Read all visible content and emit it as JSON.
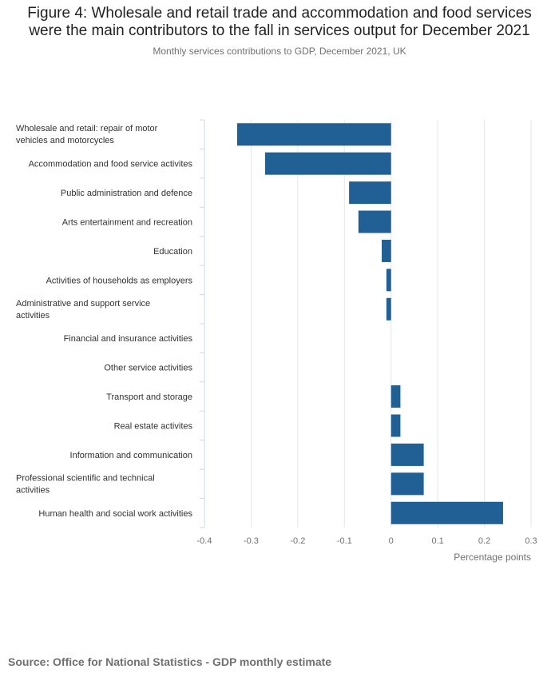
{
  "figure": {
    "title_line1": "Figure 4: Wholesale and retail trade and accommodation and food services",
    "title_line2": "were the main contributors to the fall in services output for December 2021",
    "subtitle": "Monthly services contributions to GDP, December 2021, UK",
    "source": "Source: Office for National Statistics - GDP monthly estimate"
  },
  "chart_data": {
    "type": "bar",
    "orientation": "horizontal",
    "categories": [
      [
        "Wholesale and retail: repair of motor",
        "vehicles and motorcycles"
      ],
      [
        "Accommodation and food service activites"
      ],
      [
        "Public administration and defence"
      ],
      [
        "Arts entertainment and recreation"
      ],
      [
        "Education"
      ],
      [
        "Activities of households as employers"
      ],
      [
        "Administrative and support service",
        "activities"
      ],
      [
        "Financial and insurance activities"
      ],
      [
        "Other service activities"
      ],
      [
        "Transport and storage"
      ],
      [
        "Real estate activites"
      ],
      [
        "Information and communication"
      ],
      [
        "Professional scientific and technical",
        "activities"
      ],
      [
        "Human health and social work activities"
      ]
    ],
    "values": [
      -0.33,
      -0.27,
      -0.09,
      -0.07,
      -0.02,
      -0.01,
      -0.01,
      0,
      0,
      0.02,
      0.02,
      0.07,
      0.07,
      0.24
    ],
    "xlim": [
      -0.4,
      0.3
    ],
    "xticks": [
      "-0.4",
      "-0.3",
      "-0.2",
      "-0.1",
      "0",
      "0.1",
      "0.2",
      "0.3"
    ],
    "xlabel": "Percentage points",
    "bar_color": "#206095",
    "grid": "vertical"
  }
}
